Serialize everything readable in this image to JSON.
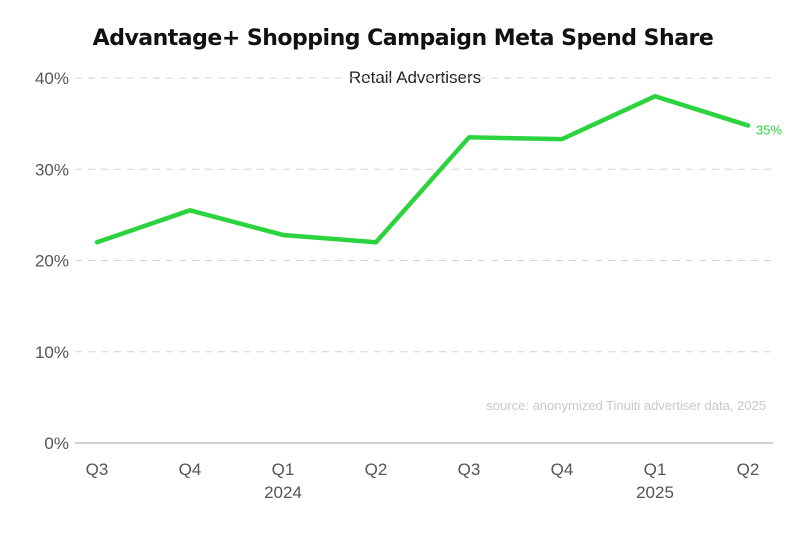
{
  "chart_data": {
    "type": "line",
    "title": "Advantage+ Shopping Campaign Meta Spend Share",
    "subtitle": "Retail Advertisers",
    "xlabel": "",
    "ylabel": "",
    "ylim": [
      0,
      40
    ],
    "yticks": [
      "0%",
      "10%",
      "20%",
      "30%",
      "40%"
    ],
    "ytick_values": [
      0,
      10,
      20,
      30,
      40
    ],
    "categories": [
      "Q3",
      "Q4",
      "Q1",
      "Q2",
      "Q3",
      "Q4",
      "Q1",
      "Q2"
    ],
    "year_labels": [
      "",
      "",
      "2024",
      "",
      "",
      "",
      "2025",
      ""
    ],
    "series": [
      {
        "values": [
          22.0,
          25.5,
          22.8,
          22.0,
          33.5,
          33.3,
          38.0,
          34.8
        ],
        "color": "#2bd43f"
      }
    ],
    "end_label": "35%",
    "grid": true,
    "legend": "none",
    "source_note": "source: anonymized Tinuiti advertiser data, 2025"
  }
}
